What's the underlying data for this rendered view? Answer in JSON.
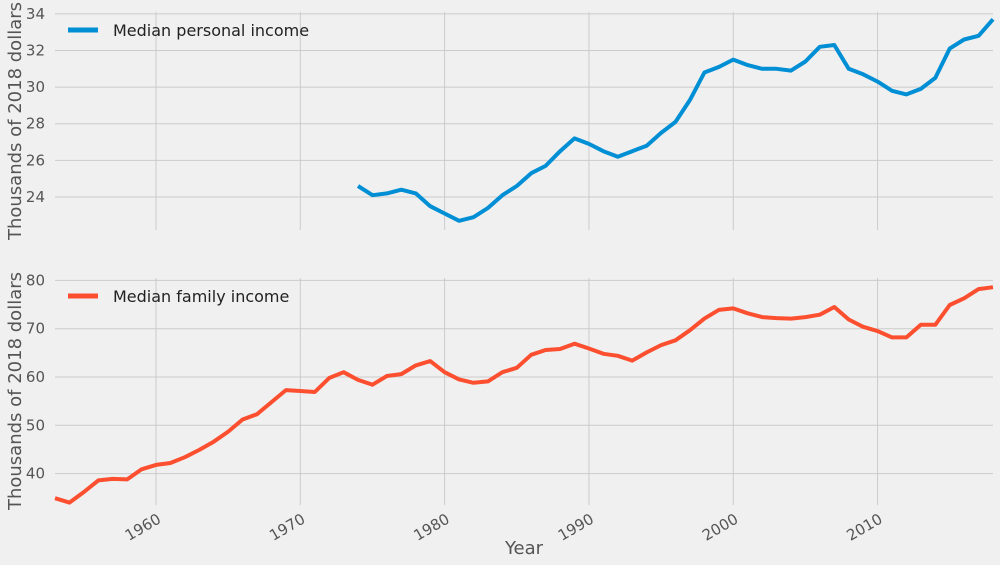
{
  "chart_data": [
    {
      "type": "line",
      "ylabel": "Thousands of 2018 dollars",
      "xlabel": "",
      "xlim": [
        1953,
        2018
      ],
      "ylim": [
        22.2,
        34.1
      ],
      "yticks": [
        24,
        26,
        28,
        30,
        32,
        34
      ],
      "xticks": [
        1960,
        1970,
        1980,
        1990,
        2000,
        2010
      ],
      "legend_position": "top-left",
      "grid": true,
      "series": [
        {
          "name": "Median personal income",
          "color": "#008fd5",
          "x": [
            1974,
            1975,
            1976,
            1977,
            1978,
            1979,
            1980,
            1981,
            1982,
            1983,
            1984,
            1985,
            1986,
            1987,
            1988,
            1989,
            1990,
            1991,
            1992,
            1993,
            1994,
            1995,
            1996,
            1997,
            1998,
            1999,
            2000,
            2001,
            2002,
            2003,
            2004,
            2005,
            2006,
            2007,
            2008,
            2009,
            2010,
            2011,
            2012,
            2013,
            2014,
            2015,
            2016,
            2017,
            2018
          ],
          "values": [
            24.6,
            24.1,
            24.2,
            24.4,
            24.2,
            23.5,
            23.1,
            22.7,
            22.9,
            23.4,
            24.1,
            24.6,
            25.3,
            25.7,
            26.5,
            27.2,
            26.9,
            26.5,
            26.2,
            26.5,
            26.8,
            27.5,
            28.1,
            29.3,
            30.8,
            31.1,
            31.5,
            31.2,
            31.0,
            31.0,
            30.9,
            31.4,
            32.2,
            32.3,
            31.0,
            30.7,
            30.3,
            29.8,
            29.6,
            29.9,
            30.5,
            32.1,
            32.6,
            32.8,
            33.7
          ]
        }
      ]
    },
    {
      "type": "line",
      "ylabel": "Thousands of 2018 dollars",
      "xlabel": "Year",
      "xlim": [
        1953,
        2018
      ],
      "ylim": [
        33.5,
        80.5
      ],
      "yticks": [
        40,
        50,
        60,
        70,
        80
      ],
      "xticks": [
        1960,
        1970,
        1980,
        1990,
        2000,
        2010
      ],
      "legend_position": "top-left",
      "grid": true,
      "series": [
        {
          "name": "Median family income",
          "color": "#fc4f30",
          "x": [
            1953,
            1954,
            1955,
            1956,
            1957,
            1958,
            1959,
            1960,
            1961,
            1962,
            1963,
            1964,
            1965,
            1966,
            1967,
            1968,
            1969,
            1970,
            1971,
            1972,
            1973,
            1974,
            1975,
            1976,
            1977,
            1978,
            1979,
            1980,
            1981,
            1982,
            1983,
            1984,
            1985,
            1986,
            1987,
            1988,
            1989,
            1990,
            1991,
            1992,
            1993,
            1994,
            1995,
            1996,
            1997,
            1998,
            1999,
            2000,
            2001,
            2002,
            2003,
            2004,
            2005,
            2006,
            2007,
            2008,
            2009,
            2010,
            2011,
            2012,
            2013,
            2014,
            2015,
            2016,
            2017,
            2018
          ],
          "values": [
            34.9,
            34.0,
            36.2,
            38.6,
            38.9,
            38.8,
            40.9,
            41.8,
            42.2,
            43.4,
            44.9,
            46.6,
            48.7,
            51.2,
            52.3,
            54.8,
            57.3,
            57.1,
            56.9,
            59.8,
            61.0,
            59.4,
            58.4,
            60.2,
            60.6,
            62.4,
            63.3,
            61.0,
            59.5,
            58.8,
            59.1,
            61.0,
            61.9,
            64.6,
            65.6,
            65.8,
            66.9,
            65.9,
            64.8,
            64.4,
            63.4,
            65.1,
            66.6,
            67.6,
            69.7,
            72.1,
            73.9,
            74.2,
            73.2,
            72.4,
            72.2,
            72.1,
            72.4,
            72.9,
            74.5,
            71.9,
            70.4,
            69.5,
            68.2,
            68.2,
            70.8,
            70.8,
            74.9,
            76.3,
            78.2,
            78.6
          ]
        }
      ]
    }
  ]
}
